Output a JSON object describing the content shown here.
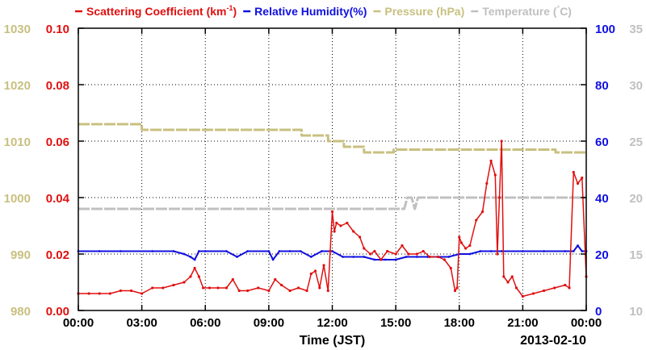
{
  "legend": [
    {
      "text": "Scattering Coefficient (km",
      "sup": "-1",
      "suffix": ")",
      "color": "#e01010"
    },
    {
      "text": "Relative Humidity(%)",
      "color": "#1010e0"
    },
    {
      "text": "Pressure (hPa)",
      "color": "#c8c080"
    },
    {
      "text": "Temperature (",
      "sup": "°",
      "suffix": "C)",
      "color": "#c0c0c0"
    }
  ],
  "chart_data": {
    "type": "line",
    "xlabel": "Time (JST)",
    "date_label": "2013-02-10",
    "x_ticks": [
      "00:00",
      "03:00",
      "06:00",
      "09:00",
      "12:00",
      "15:00",
      "18:00",
      "21:00",
      "00:00"
    ],
    "xlim": [
      0,
      24
    ],
    "grid": true,
    "legend_position": "top",
    "axes": {
      "left_outer": {
        "name": "Pressure (hPa)",
        "ticks": [
          "980",
          "990",
          "1000",
          "1010",
          "1020",
          "1030"
        ],
        "range": [
          980,
          1030
        ],
        "color": "#c8c080"
      },
      "left_inner": {
        "name": "Scattering Coefficient (km-1)",
        "ticks": [
          "0.00",
          "0.02",
          "0.04",
          "0.06",
          "0.08",
          "0.10"
        ],
        "range": [
          0.0,
          0.1
        ],
        "color": "#e01010"
      },
      "right_inner": {
        "name": "Relative Humidity(%)",
        "ticks": [
          "0",
          "20",
          "40",
          "60",
          "80",
          "100"
        ],
        "range": [
          0,
          100
        ],
        "color": "#1010e0"
      },
      "right_outer": {
        "name": "Temperature (C)",
        "ticks": [
          "10",
          "15",
          "20",
          "25",
          "30",
          "35"
        ],
        "range": [
          10,
          35
        ],
        "color": "#c0c0c0"
      }
    },
    "series": [
      {
        "name": "Pressure (hPa)",
        "axis": "left_outer",
        "color": "#c8c080",
        "style": "step",
        "width": 3,
        "x": [
          0,
          2.9,
          3.0,
          10.4,
          10.55,
          10.7,
          11.8,
          12.0,
          12.55,
          12.7,
          13.5,
          13.7,
          14.9,
          15.1,
          17.4,
          17.6,
          22.5,
          22.55,
          22.7,
          22.8,
          24
        ],
        "y": [
          1013,
          1013,
          1012,
          1012,
          1011,
          1011,
          1010,
          1010,
          1009,
          1009,
          1008,
          1008,
          1008.5,
          1008.5,
          1008.5,
          1008.5,
          1008.5,
          1008,
          1008,
          1008,
          1008
        ]
      },
      {
        "name": "Temperature (C)",
        "axis": "right_outer",
        "color": "#c0c0c0",
        "style": "line",
        "width": 3,
        "x": [
          0,
          15.4,
          15.55,
          15.75,
          15.9,
          16.05,
          16.2,
          24
        ],
        "y": [
          19,
          19,
          20,
          20,
          19,
          20,
          20,
          20
        ]
      },
      {
        "name": "Relative Humidity(%)",
        "axis": "right_inner",
        "color": "#1010e0",
        "style": "line",
        "width": 2,
        "x": [
          0,
          1.0,
          2.0,
          3.5,
          4.5,
          5.0,
          5.3,
          5.5,
          5.7,
          6.0,
          7.0,
          7.5,
          8.0,
          9.0,
          9.2,
          9.5,
          10.0,
          10.5,
          11.0,
          11.5,
          12.0,
          12.5,
          13.0,
          13.5,
          14.0,
          14.5,
          15.0,
          15.5,
          16.0,
          16.5,
          17.0,
          17.5,
          18.0,
          18.5,
          19.0,
          19.5,
          20.0,
          21.0,
          22.0,
          23.0,
          23.4,
          23.6,
          23.8,
          24
        ],
        "y": [
          21,
          21,
          21,
          21,
          21,
          20,
          19,
          18,
          21,
          21,
          21,
          19,
          21,
          21,
          18,
          21,
          21,
          21,
          19,
          21,
          21,
          19,
          19,
          19,
          18,
          18,
          18,
          19,
          19,
          19,
          19,
          19,
          20,
          20,
          21,
          21,
          21,
          21,
          21,
          21,
          21,
          23,
          21,
          21
        ]
      },
      {
        "name": "Scattering Coefficient (km-1)",
        "axis": "left_inner",
        "color": "#e01010",
        "style": "line",
        "width": 1.5,
        "markers": true,
        "x": [
          0,
          0.5,
          1.0,
          1.5,
          2.0,
          2.5,
          3.0,
          3.5,
          4.0,
          4.5,
          5.0,
          5.3,
          5.5,
          5.7,
          5.9,
          6.2,
          6.6,
          7.0,
          7.3,
          7.6,
          8.0,
          8.5,
          9.0,
          9.3,
          9.6,
          10.0,
          10.4,
          10.8,
          11.0,
          11.2,
          11.4,
          11.6,
          11.8,
          11.9,
          12.0,
          12.1,
          12.2,
          12.4,
          12.7,
          13.0,
          13.3,
          13.5,
          13.8,
          14.0,
          14.3,
          14.6,
          15.0,
          15.3,
          15.6,
          16.0,
          16.3,
          16.6,
          17.0,
          17.3,
          17.6,
          17.8,
          17.9,
          18.0,
          18.1,
          18.3,
          18.5,
          18.8,
          19.1,
          19.3,
          19.5,
          19.7,
          19.8,
          19.9,
          20.0,
          20.1,
          20.3,
          20.5,
          20.7,
          21.0,
          21.5,
          22.0,
          22.5,
          23.0,
          23.2,
          23.4,
          23.6,
          23.8,
          24.0
        ],
        "y": [
          0.006,
          0.006,
          0.006,
          0.006,
          0.007,
          0.007,
          0.006,
          0.008,
          0.008,
          0.009,
          0.01,
          0.012,
          0.015,
          0.012,
          0.008,
          0.008,
          0.008,
          0.008,
          0.011,
          0.007,
          0.007,
          0.008,
          0.007,
          0.011,
          0.009,
          0.007,
          0.008,
          0.007,
          0.013,
          0.014,
          0.008,
          0.016,
          0.007,
          0.021,
          0.035,
          0.028,
          0.031,
          0.03,
          0.031,
          0.028,
          0.026,
          0.022,
          0.02,
          0.021,
          0.018,
          0.021,
          0.02,
          0.023,
          0.02,
          0.02,
          0.021,
          0.019,
          0.019,
          0.018,
          0.015,
          0.007,
          0.008,
          0.026,
          0.024,
          0.022,
          0.023,
          0.032,
          0.035,
          0.045,
          0.053,
          0.048,
          0.02,
          0.04,
          0.06,
          0.012,
          0.01,
          0.012,
          0.008,
          0.005,
          0.006,
          0.007,
          0.008,
          0.009,
          0.008,
          0.049,
          0.045,
          0.047,
          0.012
        ]
      }
    ]
  }
}
